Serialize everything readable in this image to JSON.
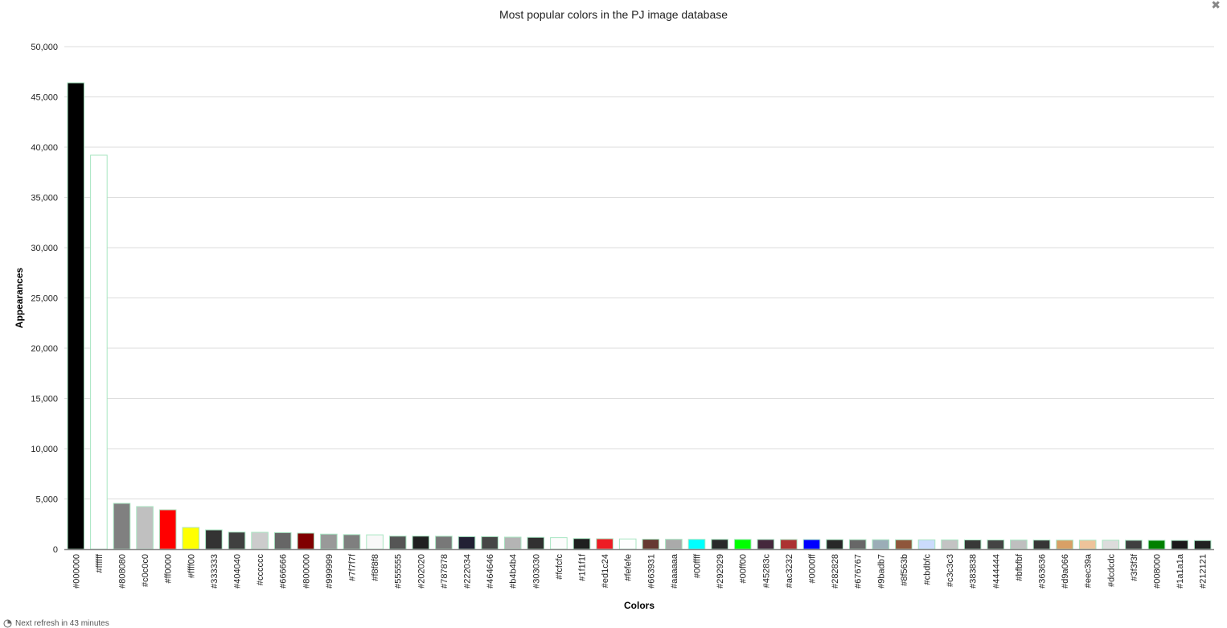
{
  "chart_data": {
    "type": "bar",
    "title": "Most popular colors in the PJ image database",
    "xlabel": "Colors",
    "ylabel": "Appearances",
    "ylim": [
      0,
      50000
    ],
    "yticks": [
      "0",
      "5,000",
      "10,000",
      "15,000",
      "20,000",
      "25,000",
      "30,000",
      "35,000",
      "40,000",
      "45,000",
      "50,000"
    ],
    "grid": true,
    "categories": [
      "#000000",
      "#ffffff",
      "#808080",
      "#c0c0c0",
      "#ff0000",
      "#ffff00",
      "#333333",
      "#404040",
      "#cccccc",
      "#666666",
      "#800000",
      "#999999",
      "#7f7f7f",
      "#f8f8f8",
      "#555555",
      "#202020",
      "#787878",
      "#222034",
      "#464646",
      "#b4b4b4",
      "#303030",
      "#fcfcfc",
      "#1f1f1f",
      "#ed1c24",
      "#fefefe",
      "#663931",
      "#aaaaaa",
      "#00ffff",
      "#292929",
      "#00ff00",
      "#45283c",
      "#ac3232",
      "#0000ff",
      "#282828",
      "#676767",
      "#9badb7",
      "#8f563b",
      "#cbdbfc",
      "#c3c3c3",
      "#383838",
      "#444444",
      "#bfbfbf",
      "#363636",
      "#d9a066",
      "#eec39a",
      "#dcdcdc",
      "#3f3f3f",
      "#008000",
      "#1a1a1a",
      "#212121"
    ],
    "values": [
      46400,
      39200,
      4560,
      4240,
      3920,
      2160,
      1920,
      1700,
      1680,
      1650,
      1600,
      1500,
      1450,
      1430,
      1300,
      1300,
      1290,
      1250,
      1250,
      1200,
      1180,
      1150,
      1060,
      1040,
      1020,
      990,
      985,
      980,
      975,
      970,
      965,
      960,
      955,
      950,
      945,
      940,
      935,
      930,
      925,
      920,
      915,
      910,
      905,
      900,
      895,
      890,
      885,
      880,
      870,
      860
    ],
    "bar_stroke": "#a8e6c2"
  },
  "close_icon": "close-icon",
  "footer": {
    "icon": "clock-pie-icon",
    "text": "Next refresh in 43 minutes"
  }
}
